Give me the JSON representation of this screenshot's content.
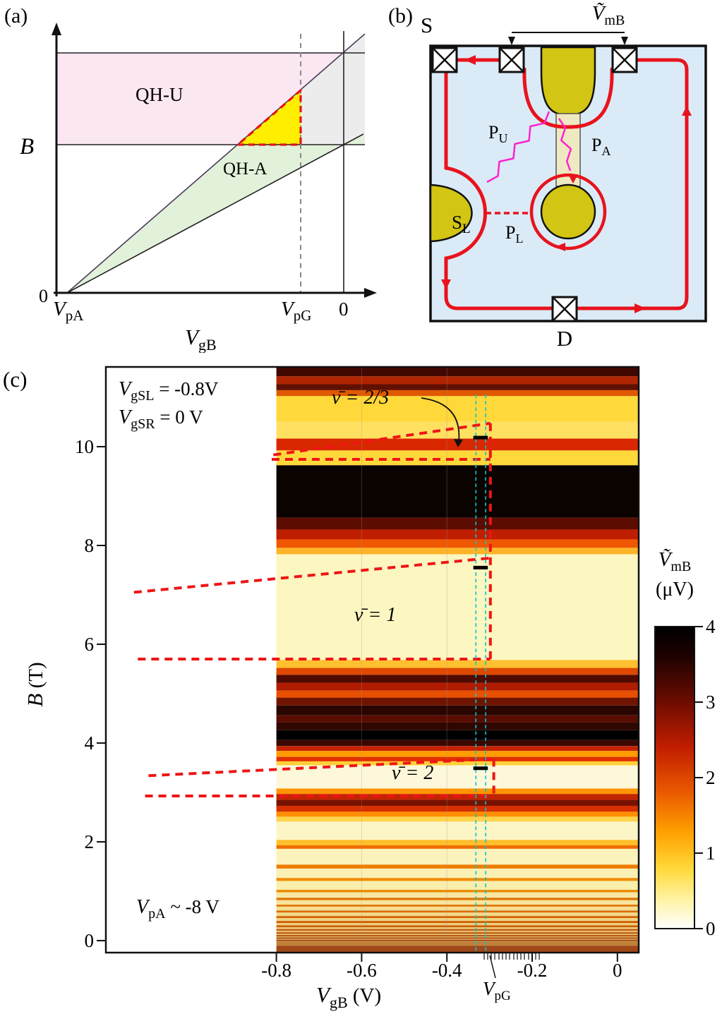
{
  "panel_a": {
    "label": "(a)",
    "b_axis": "B",
    "origin_zero": "0",
    "region_qhu": "QH-U",
    "region_qha": "QH-A",
    "tick_vpa": {
      "main": "V",
      "sub": "pA"
    },
    "tick_vpg": {
      "main": "V",
      "sub": "pG"
    },
    "tick_zero": "0",
    "x_axis": {
      "main": "V",
      "sub": "gB"
    },
    "colors": {
      "qhu_fill": "#fae7f2",
      "qha_fill": "#e2f2da",
      "right_fill": "#ececec",
      "triangle_fill": "#ffee00",
      "dashed_red": "#e81313"
    }
  },
  "panel_b": {
    "label": "(b)",
    "source_label": "S",
    "drain_label": "D",
    "vmb": {
      "main": "Ṽ",
      "sub": "mB"
    },
    "gate_sl": {
      "main": "S",
      "sub": "L"
    },
    "p_u": {
      "main": "P",
      "sub": "U"
    },
    "p_a": {
      "main": "P",
      "sub": "A"
    },
    "p_l": {
      "main": "P",
      "sub": "L"
    },
    "colors": {
      "bulk_fill": "#daebf7",
      "gate_fill": "#d2c513",
      "edge_red": "#e8131c",
      "photon_magenta": "#ff22cc"
    }
  },
  "panel_c": {
    "label": "(c)",
    "cond1": {
      "main": "V",
      "sub": "gSL",
      "rest": " = -0.8V"
    },
    "cond2": {
      "main": "V",
      "sub": "gSR",
      "rest": " = 0 V"
    },
    "nu_23": "ν̄ = 2/3",
    "nu_1": "ν̄ = 1",
    "nu_2": "ν̄ = 2",
    "vpa_note": {
      "main": "V",
      "sub": "pA",
      "rest": " ~ -8 V"
    },
    "y_title": {
      "main": "B",
      "rest": " (T)"
    },
    "x_title": {
      "main": "V",
      "sub": "gB",
      "rest": " (V)"
    },
    "vpg_marker": {
      "main": "V",
      "sub": "pG"
    },
    "colorbar_title": {
      "main": "Ṽ",
      "sub": "mB",
      "unit": "(μV)"
    }
  },
  "chart_data": {
    "type": "heatmap",
    "xlabel": "V_gB (V)",
    "ylabel": "B (T)",
    "colorbar_label": "Ṽ_mB (μV)",
    "x_range": [
      -1.2,
      0.05
    ],
    "y_range": [
      -0.24,
      11.61
    ],
    "data_x_range": [
      -0.8,
      0.05
    ],
    "x_ticks": [
      -0.8,
      -0.6,
      -0.4,
      -0.2,
      0
    ],
    "x_tick_labels": [
      "-0.8",
      "-0.6",
      "-0.4",
      "-0.2",
      "0"
    ],
    "y_ticks": [
      0,
      2,
      4,
      6,
      8,
      10
    ],
    "y_tick_labels": [
      "0",
      "2",
      "4",
      "6",
      "8",
      "10"
    ],
    "colorbar": {
      "min": 0,
      "max": 4,
      "tick_labels": [
        "4",
        "3",
        "2",
        "1",
        "0"
      ]
    },
    "annotations": [
      "ν̄ = 2/3",
      "ν̄ = 1",
      "ν̄ = 2",
      "V_gSL = -0.8V",
      "V_gSR = 0 V",
      "V_pA ~ -8 V",
      "V_pG"
    ],
    "grid_x": [
      -0.6,
      -0.4
    ],
    "bands": [
      [
        11.42,
        11.61,
        "#400800"
      ],
      [
        11.26,
        11.42,
        "#b02400"
      ],
      [
        11.14,
        11.26,
        "#601000"
      ],
      [
        11.02,
        11.14,
        "#e05800"
      ],
      [
        10.5,
        11.02,
        "#ffd83a"
      ],
      [
        10.16,
        10.5,
        "#ffe060"
      ],
      [
        9.92,
        10.16,
        "#d92800"
      ],
      [
        9.62,
        9.92,
        "#ffd83a"
      ],
      [
        8.56,
        9.62,
        "#0b0300"
      ],
      [
        8.32,
        8.56,
        "#5c0c00"
      ],
      [
        8.12,
        8.32,
        "#c01e00"
      ],
      [
        7.95,
        8.12,
        "#ef5800"
      ],
      [
        7.82,
        7.95,
        "#ffb428"
      ],
      [
        5.68,
        7.82,
        "#fcf6c0"
      ],
      [
        5.52,
        5.68,
        "#ffc030"
      ],
      [
        5.38,
        5.52,
        "#e04800"
      ],
      [
        5.22,
        5.38,
        "#500a00"
      ],
      [
        5.06,
        5.22,
        "#b01c00"
      ],
      [
        4.92,
        5.06,
        "#e85000"
      ],
      [
        4.76,
        4.92,
        "#701400"
      ],
      [
        4.56,
        4.76,
        "#2a0500"
      ],
      [
        4.42,
        4.56,
        "#5a0c00"
      ],
      [
        4.26,
        4.42,
        "#300600"
      ],
      [
        4.06,
        4.26,
        "#000000"
      ],
      [
        3.94,
        4.06,
        "#3a0800"
      ],
      [
        3.84,
        3.94,
        "#c42200"
      ],
      [
        3.72,
        3.84,
        "#ff9c00"
      ],
      [
        3.63,
        3.72,
        "#e23000"
      ],
      [
        3.55,
        3.63,
        "#ffd038"
      ],
      [
        3.08,
        3.55,
        "#fdf8da"
      ],
      [
        2.97,
        3.08,
        "#ff9400"
      ],
      [
        2.85,
        2.97,
        "#c22400"
      ],
      [
        2.73,
        2.85,
        "#781200"
      ],
      [
        2.61,
        2.73,
        "#d63000"
      ],
      [
        2.51,
        2.61,
        "#ff8e00"
      ],
      [
        2.41,
        2.51,
        "#ffd44c"
      ],
      [
        2.04,
        2.41,
        "#fcf5c6"
      ],
      [
        1.93,
        2.04,
        "#ffbe2a"
      ],
      [
        1.86,
        1.93,
        "#ee6e00"
      ],
      [
        1.54,
        1.86,
        "#fcf3bc"
      ],
      [
        1.46,
        1.54,
        "#ee7e00"
      ],
      [
        1.27,
        1.46,
        "#fbf0b4"
      ],
      [
        1.21,
        1.27,
        "#f08c00"
      ],
      [
        1.03,
        1.21,
        "#faeeac"
      ],
      [
        0.98,
        1.03,
        "#ec8c00"
      ],
      [
        0.87,
        0.98,
        "#f9e8a4"
      ],
      [
        0.82,
        0.87,
        "#e07400"
      ],
      [
        0.73,
        0.82,
        "#f8e49c"
      ],
      [
        0.69,
        0.73,
        "#e07400"
      ],
      [
        0.61,
        0.69,
        "#f5de92"
      ],
      [
        0.57,
        0.61,
        "#d96c00"
      ],
      [
        0.5,
        0.57,
        "#f3d88a"
      ],
      [
        0.46,
        0.5,
        "#d46400"
      ],
      [
        0.4,
        0.46,
        "#f1d382"
      ],
      [
        0.36,
        0.4,
        "#cc5c00"
      ],
      [
        0.31,
        0.36,
        "#eecd7a"
      ],
      [
        0.275,
        0.31,
        "#c45400"
      ],
      [
        0.235,
        0.275,
        "#ebc772"
      ],
      [
        0.205,
        0.235,
        "#bc4c00"
      ],
      [
        0.17,
        0.205,
        "#e7c06a"
      ],
      [
        0.145,
        0.17,
        "#b44400"
      ],
      [
        0.115,
        0.145,
        "#e3ba62"
      ],
      [
        0.09,
        0.115,
        "#ac3c00"
      ],
      [
        0.065,
        0.09,
        "#dfb45a"
      ],
      [
        0.045,
        0.065,
        "#a43400"
      ],
      [
        0.02,
        0.045,
        "#d8a850"
      ],
      [
        0.0,
        0.02,
        "#9c2c00"
      ],
      [
        -0.1,
        0.0,
        "#c08038"
      ],
      [
        -0.24,
        -0.1,
        "#a04818"
      ]
    ],
    "overlays": {
      "red_dashed_lines": [
        [
          -0.807,
          9.83,
          -0.298,
          10.47
        ],
        [
          -0.811,
          9.74,
          -0.298,
          9.74
        ],
        [
          -0.298,
          10.47,
          -0.298,
          5.7
        ],
        [
          -1.134,
          7.05,
          -0.302,
          7.74
        ],
        [
          -1.125,
          5.7,
          -0.298,
          5.7
        ],
        [
          -1.1,
          3.34,
          -0.29,
          3.68
        ],
        [
          -1.108,
          2.93,
          -0.29,
          2.93
        ],
        [
          -0.29,
          3.68,
          -0.29,
          2.93
        ]
      ],
      "cyan_lines_x": [
        -0.332,
        -0.309
      ],
      "cyan_b_range": [
        -0.24,
        11.05
      ],
      "black_marks": [
        [
          -0.321,
          10.18
        ],
        [
          -0.321,
          7.55
        ],
        [
          -0.321,
          3.49
        ]
      ]
    }
  }
}
